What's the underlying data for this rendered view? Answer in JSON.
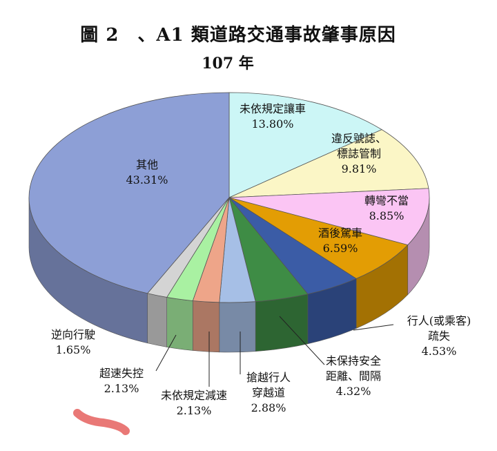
{
  "title": "圖 2　、A1 類道路交通事故肇事原因",
  "subtitle": "107 年",
  "chart_data": {
    "type": "pie",
    "title": "圖 2　、A1 類道路交通事故肇事原因",
    "subtitle": "107 年",
    "three_d": true,
    "legend": "none",
    "slices": [
      {
        "label": "未依規定讓車",
        "value": 13.8,
        "display": "13.80%",
        "color": "#ccf6f6",
        "label_lines": [
          "未依規定讓車"
        ]
      },
      {
        "label": "違反號誌、標誌管制",
        "value": 9.81,
        "display": "9.81%",
        "color": "#fbf6c6",
        "label_lines": [
          "違反號誌、",
          "標誌管制"
        ]
      },
      {
        "label": "轉彎不當",
        "value": 8.85,
        "display": "8.85%",
        "color": "#fbc5f4",
        "label_lines": [
          "轉彎不當"
        ]
      },
      {
        "label": "酒後駕車",
        "value": 6.59,
        "display": "6.59%",
        "color": "#e39d04",
        "label_lines": [
          "酒後駕車"
        ]
      },
      {
        "label": "行人(或乘客)疏失",
        "value": 4.53,
        "display": "4.53%",
        "color": "#3b5ca6",
        "label_lines": [
          "行人(或乘客)",
          "疏失"
        ]
      },
      {
        "label": "未保持安全距離、間隔",
        "value": 4.32,
        "display": "4.32%",
        "color": "#3e8c45",
        "label_lines": [
          "未保持安全",
          "距離、間隔"
        ]
      },
      {
        "label": "搶越行人穿越道",
        "value": 2.88,
        "display": "2.88%",
        "color": "#a6bfe6",
        "label_lines": [
          "搶越行人",
          "穿越道"
        ]
      },
      {
        "label": "未依規定減速",
        "value": 2.13,
        "display": "2.13%",
        "color": "#eea589",
        "label_lines": [
          "未依規定減速"
        ]
      },
      {
        "label": "超速失控",
        "value": 2.13,
        "display": "2.13%",
        "color": "#a9f1a2",
        "label_lines": [
          "超速失控"
        ]
      },
      {
        "label": "逆向行駛",
        "value": 1.65,
        "display": "1.65%",
        "color": "#d4d4d4",
        "label_lines": [
          "逆向行駛"
        ]
      },
      {
        "label": "其他",
        "value": 43.31,
        "display": "43.31%",
        "color": "#8d9fd6",
        "label_lines": [
          "其他"
        ]
      }
    ]
  }
}
